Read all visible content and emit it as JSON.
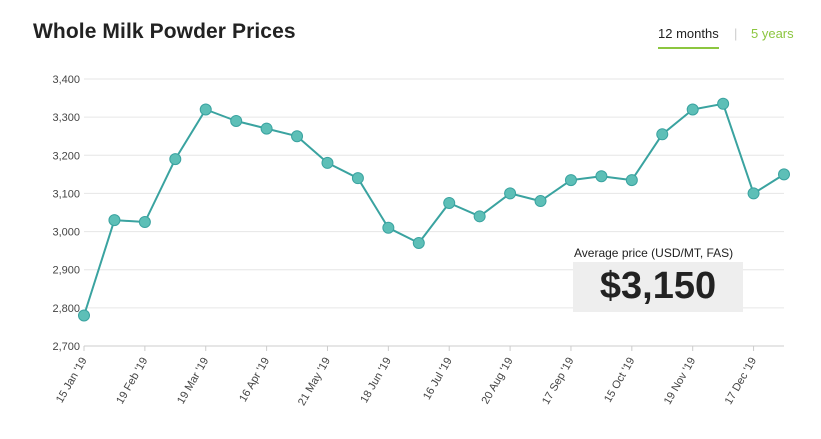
{
  "page": {
    "title": "Whole Milk Powder Prices",
    "tabs": {
      "months12": "12 months",
      "separator": "|",
      "years5": "5 years"
    },
    "average": {
      "label": "Average price (USD/MT, FAS)",
      "value": "$3,150"
    }
  },
  "colors": {
    "line": "#3aa3a0",
    "marker": "#5dbfb7",
    "accent": "#8cc63f",
    "grid": "#e6e6e6"
  },
  "chart_data": {
    "type": "line",
    "title": "Whole Milk Powder Prices",
    "xlabel": "",
    "ylabel": "",
    "ylim": [
      2700,
      3400
    ],
    "yticks": [
      2700,
      2800,
      2900,
      3000,
      3100,
      3200,
      3300,
      3400
    ],
    "ytick_labels": [
      "2,700",
      "2,800",
      "2,900",
      "3,000",
      "3,100",
      "3,200",
      "3,300",
      "3,400"
    ],
    "xtick_labels": [
      "15 Jan '19",
      "19 Feb '19",
      "19 Mar '19",
      "16 Apr '19",
      "21 May '19",
      "18 Jun '19",
      "16 Jul '19",
      "20 Aug '19",
      "17 Sep '19",
      "15 Oct '19",
      "19 Nov '19",
      "17 Dec '19"
    ],
    "xtick_point_index": [
      0,
      2,
      4,
      6,
      8,
      10,
      12,
      14,
      16,
      18,
      20,
      22
    ],
    "grid": true,
    "series": [
      {
        "name": "Whole Milk Powder",
        "values": [
          2780,
          3030,
          3025,
          3190,
          3320,
          3290,
          3270,
          3250,
          3180,
          3140,
          3010,
          2970,
          3075,
          3040,
          3100,
          3080,
          3135,
          3145,
          3135,
          3255,
          3320,
          3335,
          3100,
          3150
        ]
      }
    ]
  }
}
